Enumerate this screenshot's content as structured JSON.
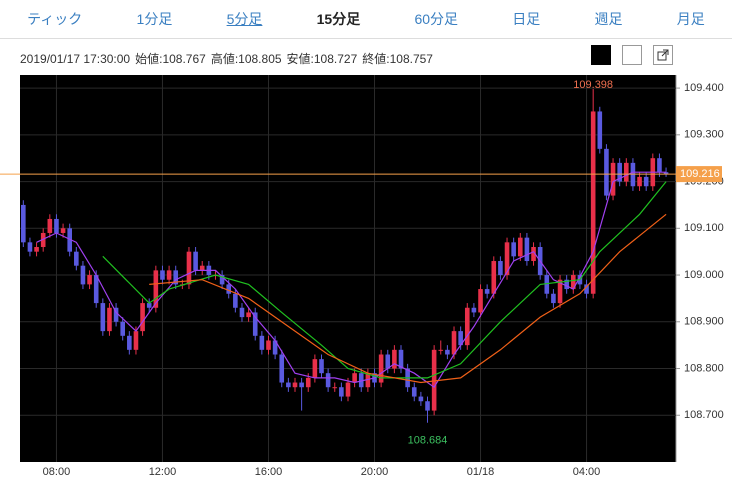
{
  "tabs": {
    "items": [
      "ティック",
      "1分足",
      "5分足",
      "15分足",
      "60分足",
      "日足",
      "週足",
      "月足"
    ],
    "selected_index": 3,
    "underlined_index": 2
  },
  "info": {
    "datetime": "2019/01/17 17:30:00",
    "items": [
      "始値:108.767",
      "高値:108.805",
      "安値:108.727",
      "終値:108.757"
    ]
  },
  "chart_data": {
    "type": "candlestick",
    "up_color": "#e8304a",
    "down_color": "#5a5ae0",
    "background": "#000000",
    "grid": true,
    "current_price_color": "#f5a04a",
    "max_label_color": "#f07050",
    "min_label_color": "#3cc060",
    "xlim": [
      -0.5,
      98.5
    ],
    "xticks": [
      {
        "value": 5,
        "label": "08:00"
      },
      {
        "value": 21,
        "label": "12:00"
      },
      {
        "value": 37,
        "label": "16:00"
      },
      {
        "value": 53,
        "label": "20:00"
      },
      {
        "value": 69,
        "label": "01/18"
      },
      {
        "value": 85,
        "label": "04:00"
      }
    ],
    "ylim": [
      108.6,
      109.428
    ],
    "yticks": [
      {
        "value": 108.7,
        "label": "108.700"
      },
      {
        "value": 108.8,
        "label": "108.800"
      },
      {
        "value": 108.9,
        "label": "108.900"
      },
      {
        "value": 109.0,
        "label": "109.000"
      },
      {
        "value": 109.1,
        "label": "109.100"
      },
      {
        "value": 109.2,
        "label": "109.200"
      },
      {
        "value": 109.3,
        "label": "109.300"
      },
      {
        "value": 109.4,
        "label": "109.400"
      }
    ],
    "open": [
      109.15,
      109.07,
      109.05,
      109.06,
      109.09,
      109.12,
      109.09,
      109.1,
      109.05,
      109.02,
      108.98,
      109.0,
      108.94,
      108.88,
      108.93,
      108.9,
      108.87,
      108.84,
      108.88,
      108.94,
      108.93,
      109.01,
      108.99,
      109.01,
      108.98,
      108.98,
      109.05,
      109.01,
      109.02,
      109.0,
      109.0,
      108.98,
      108.96,
      108.93,
      108.91,
      108.92,
      108.87,
      108.84,
      108.86,
      108.83,
      108.77,
      108.76,
      108.77,
      108.76,
      108.78,
      108.82,
      108.79,
      108.76,
      108.76,
      108.74,
      108.77,
      108.79,
      108.76,
      108.79,
      108.77,
      108.83,
      108.8,
      108.84,
      108.8,
      108.76,
      108.74,
      108.73,
      108.71,
      108.84,
      108.84,
      108.83,
      108.88,
      108.85,
      108.93,
      108.92,
      108.97,
      108.96,
      109.03,
      109.0,
      109.07,
      109.04,
      109.08,
      109.03,
      109.06,
      109.0,
      108.96,
      108.94,
      108.99,
      108.97,
      109.0,
      108.98,
      108.96,
      109.35,
      109.27,
      109.17,
      109.24,
      109.2,
      109.24,
      109.19,
      109.21,
      109.19,
      109.25,
      109.22
    ],
    "high": [
      109.16,
      109.08,
      109.07,
      109.1,
      109.13,
      109.13,
      109.11,
      109.11,
      109.06,
      109.03,
      109.01,
      109.01,
      108.95,
      108.94,
      108.94,
      108.91,
      108.88,
      108.89,
      108.95,
      108.95,
      109.02,
      109.02,
      109.02,
      109.02,
      108.99,
      109.06,
      109.06,
      109.03,
      109.03,
      109.01,
      109.01,
      108.99,
      108.97,
      108.94,
      108.93,
      108.93,
      108.88,
      108.87,
      108.87,
      108.84,
      108.78,
      108.78,
      108.78,
      108.79,
      108.83,
      108.83,
      108.8,
      108.77,
      108.77,
      108.78,
      108.8,
      108.8,
      108.8,
      108.8,
      108.84,
      108.84,
      108.85,
      108.85,
      108.81,
      108.77,
      108.75,
      108.74,
      108.85,
      108.86,
      108.85,
      108.89,
      108.89,
      108.94,
      108.94,
      108.98,
      108.98,
      109.04,
      109.04,
      109.08,
      109.08,
      109.09,
      109.09,
      109.07,
      109.07,
      109.01,
      108.97,
      109.0,
      109.0,
      109.01,
      109.01,
      108.99,
      109.398,
      109.36,
      109.28,
      109.25,
      109.25,
      109.25,
      109.25,
      109.22,
      109.22,
      109.26,
      109.26,
      109.23
    ],
    "low": [
      109.06,
      109.04,
      109.04,
      109.05,
      109.08,
      109.08,
      109.08,
      109.04,
      109.01,
      108.97,
      108.97,
      108.93,
      108.87,
      108.87,
      108.89,
      108.86,
      108.83,
      108.83,
      108.87,
      108.92,
      108.92,
      108.98,
      108.98,
      108.97,
      108.97,
      108.97,
      109.0,
      109.0,
      108.99,
      108.99,
      108.97,
      108.95,
      108.92,
      108.9,
      108.9,
      108.86,
      108.83,
      108.83,
      108.82,
      108.76,
      108.75,
      108.75,
      108.71,
      108.75,
      108.77,
      108.78,
      108.75,
      108.75,
      108.73,
      108.73,
      108.76,
      108.75,
      108.75,
      108.76,
      108.76,
      108.79,
      108.79,
      108.79,
      108.75,
      108.73,
      108.72,
      108.684,
      108.7,
      108.83,
      108.82,
      108.82,
      108.84,
      108.84,
      108.91,
      108.91,
      108.95,
      108.95,
      108.99,
      108.99,
      109.03,
      109.03,
      109.02,
      109.02,
      108.99,
      108.95,
      108.93,
      108.93,
      108.96,
      108.96,
      108.97,
      108.95,
      108.95,
      109.26,
      109.16,
      109.16,
      109.19,
      109.19,
      109.18,
      109.18,
      109.18,
      109.18,
      109.21,
      109.21
    ],
    "close": [
      109.07,
      109.05,
      109.06,
      109.09,
      109.12,
      109.09,
      109.1,
      109.05,
      109.02,
      108.98,
      109.0,
      108.94,
      108.88,
      108.93,
      108.9,
      108.87,
      108.84,
      108.88,
      108.94,
      108.93,
      109.01,
      108.99,
      109.01,
      108.98,
      108.98,
      109.05,
      109.01,
      109.02,
      109.0,
      109.0,
      108.98,
      108.96,
      108.93,
      108.91,
      108.92,
      108.87,
      108.84,
      108.86,
      108.83,
      108.77,
      108.76,
      108.77,
      108.76,
      108.78,
      108.82,
      108.79,
      108.76,
      108.76,
      108.74,
      108.77,
      108.79,
      108.76,
      108.79,
      108.77,
      108.83,
      108.8,
      108.84,
      108.8,
      108.76,
      108.74,
      108.73,
      108.71,
      108.84,
      108.84,
      108.83,
      108.88,
      108.85,
      108.93,
      108.92,
      108.97,
      108.96,
      109.03,
      109.0,
      109.07,
      109.04,
      109.08,
      109.03,
      109.06,
      109.0,
      108.96,
      108.94,
      108.99,
      108.97,
      109.0,
      108.98,
      108.96,
      109.35,
      109.27,
      109.17,
      109.24,
      109.2,
      109.24,
      109.19,
      109.21,
      109.19,
      109.25,
      109.22,
      109.216
    ],
    "lines": [
      {
        "color": "#a040f0",
        "x": [
          2,
          5,
          8,
          11,
          14,
          17,
          20,
          23,
          26,
          29,
          32,
          35,
          38,
          41,
          44,
          47,
          50,
          53,
          56,
          59,
          62,
          65,
          68,
          71,
          74,
          77,
          80,
          83,
          86,
          89,
          92,
          95,
          97
        ],
        "values": [
          109.07,
          109.09,
          109.07,
          109.0,
          108.92,
          108.88,
          108.94,
          108.99,
          109.01,
          109.01,
          108.97,
          108.91,
          108.86,
          108.79,
          108.78,
          108.78,
          108.77,
          108.78,
          108.81,
          108.79,
          108.76,
          108.83,
          108.89,
          108.96,
          109.03,
          109.05,
          108.99,
          108.97,
          109.05,
          109.2,
          109.22,
          109.22,
          109.22
        ]
      },
      {
        "color": "#20c020",
        "x": [
          12,
          19,
          22,
          29,
          34,
          39,
          45,
          49,
          54,
          61,
          66,
          72,
          78,
          84,
          87,
          93,
          97
        ],
        "values": [
          109.04,
          108.94,
          108.97,
          109.0,
          108.98,
          108.92,
          108.85,
          108.8,
          108.78,
          108.78,
          108.81,
          108.9,
          108.98,
          108.99,
          109.05,
          109.13,
          109.2
        ]
      },
      {
        "color": "#f06018",
        "x": [
          19,
          27,
          34,
          40,
          46,
          52,
          60,
          66,
          72,
          78,
          84,
          90,
          97
        ],
        "values": [
          108.98,
          108.99,
          108.95,
          108.89,
          108.83,
          108.79,
          108.77,
          108.78,
          108.84,
          108.91,
          108.96,
          109.05,
          109.13
        ]
      }
    ]
  }
}
